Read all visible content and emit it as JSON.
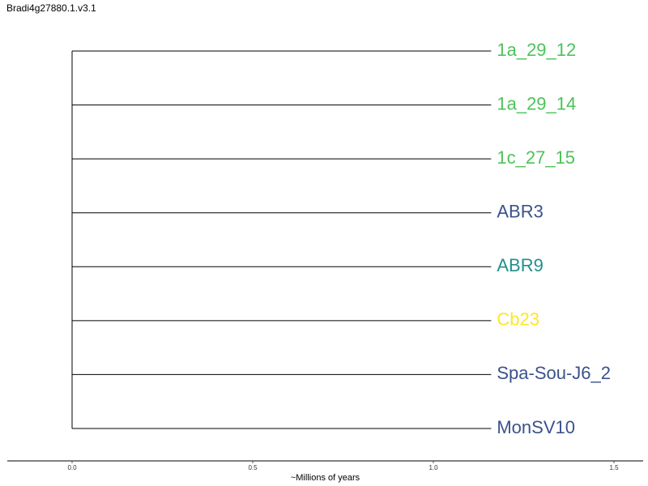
{
  "title": "Bradi4g27880.1.v3.1",
  "chart_data": {
    "type": "tree",
    "xlabel": "~Millions of years",
    "xlim": [
      -0.18,
      1.6
    ],
    "ticks": [
      {
        "value": 0.0,
        "label": "0.0"
      },
      {
        "value": 0.5,
        "label": "0.5"
      },
      {
        "value": 1.0,
        "label": "1.0"
      },
      {
        "value": 1.5,
        "label": "1.5"
      }
    ],
    "root_x": 0.0,
    "leaves": [
      {
        "label": "1a_29_12",
        "branch_end": 1.16,
        "color": "#4cc35a"
      },
      {
        "label": "1a_29_14",
        "branch_end": 1.16,
        "color": "#4cc35a"
      },
      {
        "label": "1c_27_15",
        "branch_end": 1.16,
        "color": "#4cc35a"
      },
      {
        "label": "ABR3",
        "branch_end": 1.16,
        "color": "#3b528b"
      },
      {
        "label": "ABR9",
        "branch_end": 1.16,
        "color": "#21908d"
      },
      {
        "label": "Cb23",
        "branch_end": 1.16,
        "color": "#fde725"
      },
      {
        "label": "Spa-Sou-J6_2",
        "branch_end": 1.16,
        "color": "#3b528b"
      },
      {
        "label": "MonSV10",
        "branch_end": 1.16,
        "color": "#3b528b"
      }
    ]
  }
}
